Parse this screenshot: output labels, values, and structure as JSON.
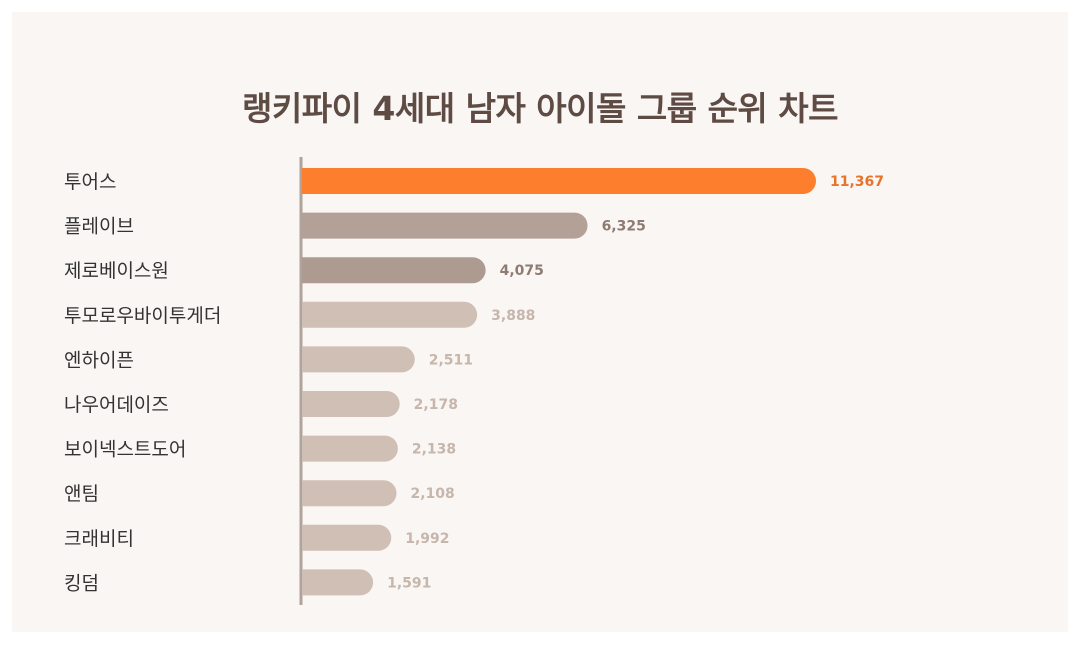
{
  "title": "랭키파이 4세대 남자 아이돌 그룹 순위 차트",
  "colors": {
    "highlight": "#fd7e2d",
    "dark": "#b3a197",
    "mid": "#ad9a91",
    "light": "#d0bfb5",
    "highlight_label": "#e8732a",
    "dark_label": "#8f7b72",
    "light_label": "#c7b6ac",
    "axis": "#b0a39c"
  },
  "chart_data": {
    "type": "bar",
    "orientation": "horizontal",
    "title": "랭키파이 4세대 남자 아이돌 그룹 순위 차트",
    "categories": [
      "투어스",
      "플레이브",
      "제로베이스원",
      "투모로우바이투게더",
      "엔하이픈",
      "나우어데이즈",
      "보이넥스트도어",
      "앤팀",
      "크래비티",
      "킹덤"
    ],
    "values": [
      11367,
      6325,
      4075,
      3888,
      2511,
      2178,
      2138,
      2108,
      1992,
      1591
    ],
    "value_labels": [
      "11,367",
      "6,325",
      "4,075",
      "3,888",
      "2,511",
      "2,178",
      "2,138",
      "2,108",
      "1,992",
      "1,591"
    ],
    "xlim": [
      0,
      11367
    ],
    "grid": false,
    "legend": "none"
  }
}
